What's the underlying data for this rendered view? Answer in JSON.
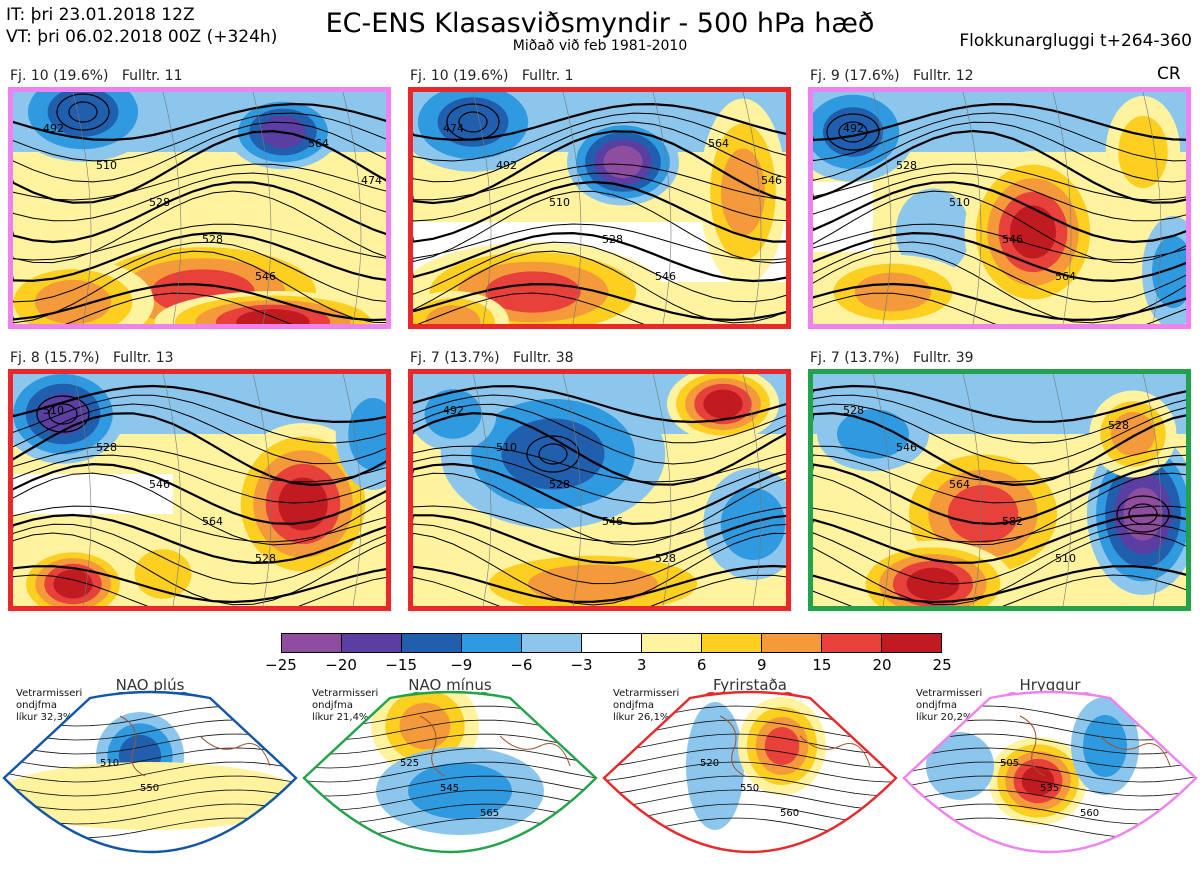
{
  "header": {
    "it_line": "IT: þri 23.01.2018 12Z",
    "vt_line": "VT: þri 06.02.2018 00Z  (+324h)",
    "title": "EC-ENS Klasasviðsmyndir - 500 hPa hæð",
    "subtitle": "Miðað við feb 1981-2010",
    "window": "Flokkunargluggi t+264-360",
    "corner": "CR"
  },
  "panels": [
    {
      "caption": "Fj. 10 (19.6%)",
      "member": "Fulltr. 11",
      "frame": "#ee82ee",
      "contours": [
        "492",
        "510",
        "528",
        "528",
        "546",
        "564",
        "474"
      ]
    },
    {
      "caption": "Fj. 10 (19.6%)",
      "member": "Fulltr. 1",
      "frame": "#e8282a",
      "contours": [
        "474",
        "492",
        "510",
        "528",
        "546",
        "564",
        "546"
      ]
    },
    {
      "caption": "Fj. 9 (17.6%)",
      "member": "Fulltr. 12",
      "frame": "#ee82ee",
      "contours": [
        "492",
        "528",
        "510",
        "546",
        "564"
      ]
    },
    {
      "caption": "Fj. 8 (15.7%)",
      "member": "Fulltr. 13",
      "frame": "#e8282a",
      "contours": [
        "510",
        "528",
        "546",
        "564",
        "528"
      ]
    },
    {
      "caption": "Fj. 7 (13.7%)",
      "member": "Fulltr. 38",
      "frame": "#e8282a",
      "contours": [
        "492",
        "510",
        "528",
        "546",
        "528"
      ]
    },
    {
      "caption": "Fj. 7 (13.7%)",
      "member": "Fulltr. 39",
      "frame": "#22a24a",
      "contours": [
        "528",
        "546",
        "564",
        "582",
        "510",
        "528"
      ]
    }
  ],
  "colorbar": {
    "colors": [
      "#8e4d9e",
      "#5a3ea2",
      "#1f5fae",
      "#2f9ae0",
      "#8cc6ec",
      "#ffffff",
      "#fff3a0",
      "#fccf20",
      "#f59a3a",
      "#e8403a",
      "#c01b20"
    ],
    "ticks": [
      "−25",
      "−20",
      "−15",
      "−9",
      "−6",
      "−3",
      "3",
      "6",
      "9",
      "15",
      "20",
      "25"
    ]
  },
  "regimes": [
    {
      "name": "NAO plús",
      "note": [
        "Vetrarmisseri",
        "ondjfma",
        "líkur 32,3%"
      ],
      "color": "#1155a8",
      "labels": [
        "510",
        "550"
      ]
    },
    {
      "name": "NAO mínus",
      "note": [
        "Vetrarmisseri",
        "ondjfma",
        "líkur 21,4%"
      ],
      "color": "#22a24a",
      "labels": [
        "525",
        "545",
        "565"
      ]
    },
    {
      "name": "Fyrirstaða",
      "note": [
        "Vetrarmisseri",
        "ondjfma",
        "líkur 26,1%"
      ],
      "color": "#e8282a",
      "labels": [
        "520",
        "550",
        "560"
      ]
    },
    {
      "name": "Hryggur",
      "note": [
        "Vetrarmisseri",
        "ondjfma",
        "líkur 20,2%"
      ],
      "color": "#ee82ee",
      "labels": [
        "505",
        "535",
        "560"
      ]
    }
  ]
}
